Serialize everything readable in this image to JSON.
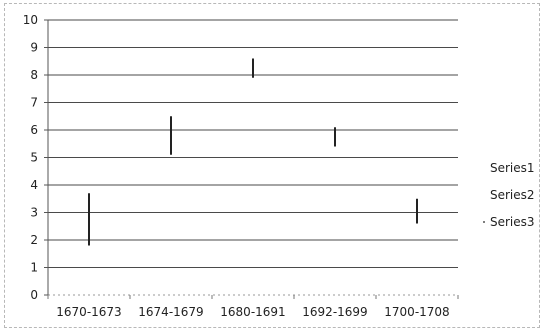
{
  "chart_data": {
    "type": "stock",
    "categories": [
      "1670-1673",
      "1674-1679",
      "1680-1691",
      "1692-1699",
      "1700-1708"
    ],
    "series": [
      {
        "name": "Series1"
      },
      {
        "name": "Series2"
      },
      {
        "name": "Series3"
      }
    ],
    "ranges": [
      {
        "low": 1.8,
        "high": 3.7
      },
      {
        "low": 5.1,
        "high": 6.5
      },
      {
        "low": 7.9,
        "high": 8.6
      },
      {
        "low": 5.4,
        "high": 6.1
      },
      {
        "low": 2.6,
        "high": 3.5
      }
    ],
    "yticks": [
      "0",
      "1",
      "2",
      "3",
      "4",
      "5",
      "6",
      "7",
      "8",
      "9",
      "10"
    ],
    "ylim": [
      0,
      10
    ],
    "title": "",
    "xlabel": "",
    "ylabel": "",
    "grid": true,
    "legend_position": "right"
  }
}
